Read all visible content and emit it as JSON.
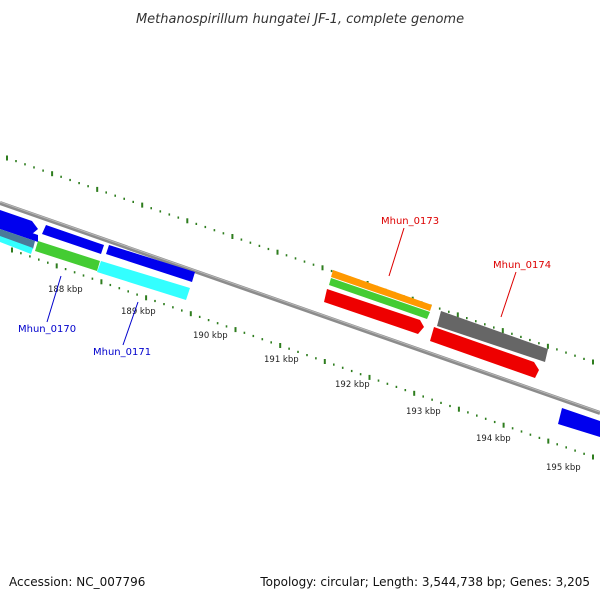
{
  "title": "Methanospirillum hungatei JF-1, complete genome",
  "footer": {
    "accession": "Accession: NC_007796",
    "summary": "Topology: circular; Length: 3,544,738 bp; Genes: 3,205"
  },
  "colors": {
    "backbone": "#8c8c8c",
    "tick": "#2e7d1e",
    "blue": "#0000ee",
    "cyan": "#33ffff",
    "green": "#44cc33",
    "orange": "#ff9900",
    "red": "#ee0000",
    "gray": "#666666",
    "steel": "#4a7a9a",
    "label_blue": "#0000cc",
    "label_red": "#dd0000"
  },
  "scale": {
    "labels": [
      "188 kbp",
      "189 kbp",
      "190 kbp",
      "191 kbp",
      "192 kbp",
      "193 kbp",
      "194 kbp",
      "195 kbp"
    ]
  },
  "gene_labels": {
    "g170": "Mhun_0170",
    "g171": "Mhun_0171",
    "g173": "Mhun_0173",
    "g174": "Mhun_0174"
  }
}
